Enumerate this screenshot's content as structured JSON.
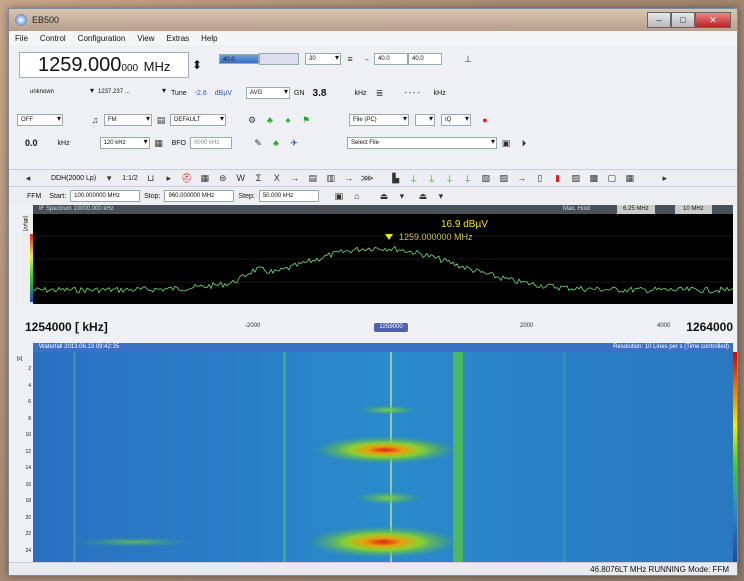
{
  "window": {
    "title": "EB500"
  },
  "menu": [
    "File",
    "Control",
    "Configuration",
    "View",
    "Extras",
    "Help"
  ],
  "frequency": {
    "main": "1259.000",
    "sub": "000",
    "unit": "MHz"
  },
  "top_row": {
    "level1": "40.0",
    "level2": "30",
    "level3": "40.0",
    "level4": "40.0",
    "unknown_label": "unknown",
    "range": "1237.237 ...",
    "tune_label": "Tune",
    "tune_value": "-2.6",
    "tune_unit": "dBµV",
    "avg_label": "AVG",
    "gain_label": "GN",
    "gain_value": "3.8",
    "khz1": "kHz",
    "dashes": "- - - -",
    "khz2": "kHz"
  },
  "third_row": {
    "off": "OFF",
    "fm": "FM",
    "default": "DEFAULT",
    "file_pc": "File (PC)",
    "iq": "IQ",
    "level": "0.0",
    "khz": "kHz",
    "bw": "120 kHz",
    "bfo": "BFO",
    "bfo_val": "0000 kHz",
    "select_file": "Select File"
  },
  "toolbar": {
    "mode": "DDH(2000 Lp)",
    "ratio": "1:1/2"
  },
  "scan": {
    "label": "FFM",
    "start_label": "Start:",
    "start_value": "100.000000 MHz",
    "stop_label": "Stop:",
    "stop_value": "960.000000 MHz",
    "step_label": "Step:",
    "step_value": "50.000 kHz"
  },
  "spectrum": {
    "title": "IF Spectrum 10000.000 kHz",
    "max_label": "Max. Hold",
    "span1": "6.25 MHz",
    "span2": "10 MHz",
    "marker_level": "16.9 dBµV",
    "marker_freq": "1259.000000 MHz",
    "y_unit": "[dBµV]"
  },
  "freq_axis": {
    "left": "1254000 [ kHz]",
    "right": "1264000",
    "ticks": [
      "-2000",
      "2000",
      "4000"
    ],
    "center": "1259000"
  },
  "waterfall": {
    "title": "Waterfall 2013.06.13 09:42:35",
    "resolution": "Resolution: 10 Lines per s (Time controlled)",
    "y_labels": [
      "2",
      "4",
      "6",
      "8",
      "10",
      "12",
      "14",
      "16",
      "18",
      "20",
      "22",
      "24"
    ],
    "y_unit": "[s]"
  },
  "status": {
    "text": "46.8076LT MHz  RUNNING  Mode: FFM"
  },
  "colors": {
    "spectrum_bg": "#000000",
    "trace": "#6fe06f",
    "marker": "#f2e320",
    "waterfall_bg": "#2a8acb"
  }
}
